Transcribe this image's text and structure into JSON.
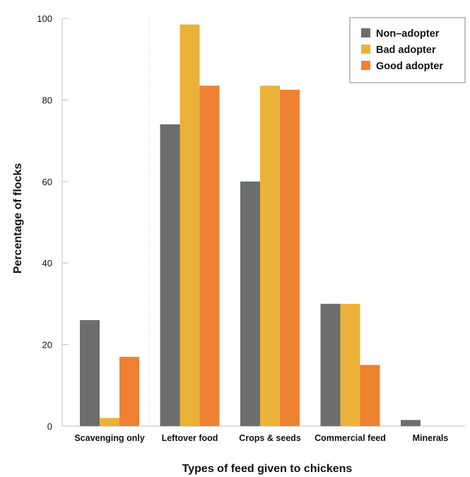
{
  "chart_data": {
    "type": "bar",
    "xlabel": "Types of feed given to chickens",
    "ylabel": "Percentage of flocks",
    "ylim": [
      0,
      100
    ],
    "yticks": [
      0,
      20,
      40,
      60,
      80,
      100
    ],
    "grid": false,
    "legend_position": "top-right",
    "categories": [
      "Scavenging only",
      "Leftover food",
      "Crops & seeds",
      "Commercial feed",
      "Minerals"
    ],
    "series": [
      {
        "name": "Non–adopter",
        "color": "#6b6e6d",
        "values": [
          26,
          74,
          60,
          30,
          1.5
        ]
      },
      {
        "name": "Bad adopter",
        "color": "#ebb23a",
        "values": [
          2,
          98.5,
          83.5,
          30,
          0
        ]
      },
      {
        "name": "Good adopter",
        "color": "#ef8132",
        "values": [
          17,
          83.5,
          82.5,
          15,
          0
        ]
      }
    ]
  }
}
